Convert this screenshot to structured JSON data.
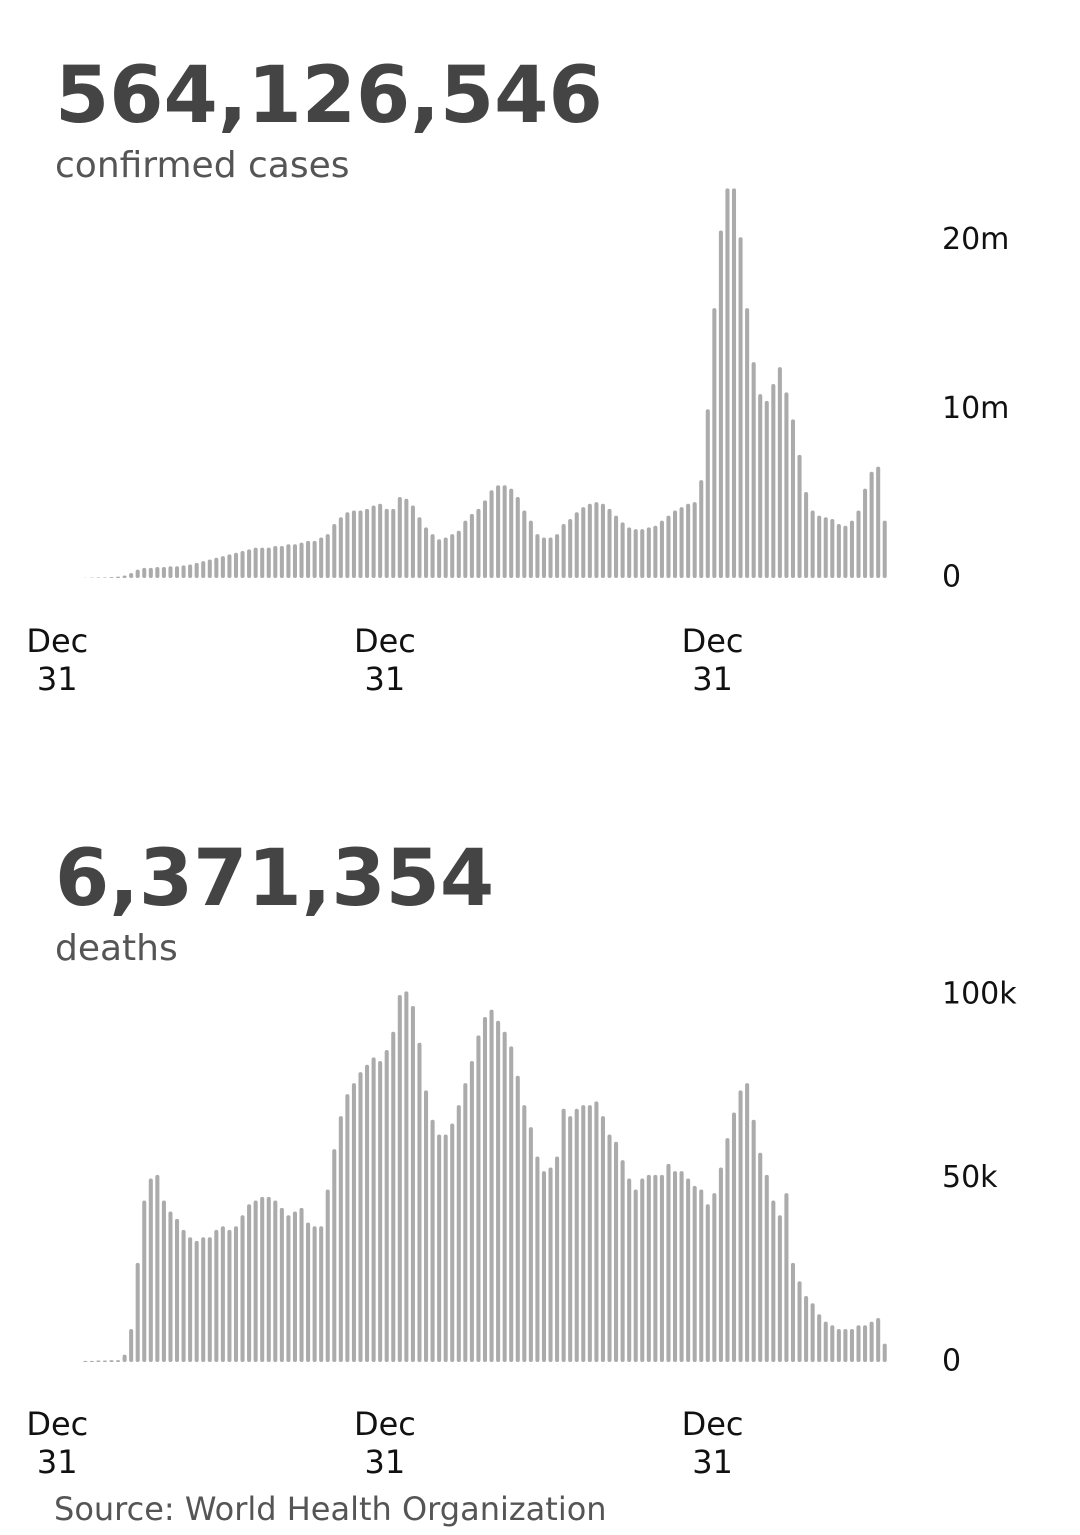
{
  "chart_data": [
    {
      "type": "bar",
      "title": "564,126,546",
      "subtitle": "confirmed cases",
      "color": "#ababab",
      "grid": false,
      "ylim": [
        0,
        23000000
      ],
      "yticks": [
        0,
        {
          "value": 10000000,
          "label": "10m"
        },
        {
          "value": 20000000,
          "label": "20m"
        }
      ],
      "categories": [
        "Dec 31",
        null,
        null,
        null,
        null,
        null,
        null,
        null,
        null,
        null,
        null,
        null,
        null,
        null,
        null,
        null,
        null,
        null,
        null,
        null,
        null,
        null,
        null,
        null,
        null,
        null,
        null,
        null,
        null,
        null,
        null,
        null,
        null,
        null,
        null,
        null,
        null,
        null,
        null,
        null,
        null,
        null,
        null,
        null,
        null,
        null,
        null,
        null,
        null,
        null,
        "Dec 31",
        null,
        null,
        null,
        null,
        null,
        null,
        null,
        null,
        null,
        null,
        null,
        null,
        null,
        null,
        null,
        null,
        null,
        null,
        null,
        null,
        null,
        null,
        null,
        null,
        null,
        null,
        null,
        null,
        null,
        null,
        null,
        null,
        null,
        null,
        null,
        null,
        null,
        null,
        null,
        null,
        null,
        null,
        null,
        null,
        null,
        null,
        null,
        null,
        null,
        "Dec 31",
        null,
        null,
        null,
        null,
        null,
        null,
        null,
        null,
        null,
        null,
        null,
        null,
        null,
        null,
        null,
        null,
        null,
        null,
        null,
        null,
        null,
        null
      ],
      "values": [
        10000,
        20000,
        30000,
        30000,
        50000,
        80000,
        150000,
        300000,
        500000,
        600000,
        600000,
        650000,
        650000,
        700000,
        700000,
        750000,
        800000,
        900000,
        1000000,
        1100000,
        1200000,
        1300000,
        1400000,
        1500000,
        1600000,
        1700000,
        1800000,
        1800000,
        1800000,
        1900000,
        1900000,
        2000000,
        2000000,
        2100000,
        2200000,
        2200000,
        2400000,
        2600000,
        3200000,
        3600000,
        3900000,
        4000000,
        4000000,
        4100000,
        4300000,
        4400000,
        4100000,
        4100000,
        4800000,
        4700000,
        4300000,
        3600000,
        3000000,
        2600000,
        2300000,
        2400000,
        2600000,
        2800000,
        3400000,
        3800000,
        4100000,
        4600000,
        5200000,
        5500000,
        5500000,
        5300000,
        4800000,
        4000000,
        3400000,
        2600000,
        2400000,
        2400000,
        2600000,
        3200000,
        3500000,
        3900000,
        4200000,
        4400000,
        4500000,
        4400000,
        4100000,
        3700000,
        3300000,
        3000000,
        2900000,
        2900000,
        3000000,
        3100000,
        3400000,
        3700000,
        4000000,
        4200000,
        4400000,
        4500000,
        5800000,
        10000000,
        16000000,
        20600000,
        23100000,
        23100000,
        20200000,
        16000000,
        12800000,
        10900000,
        10500000,
        11500000,
        12500000,
        11000000,
        9400000,
        7300000,
        5100000,
        4000000,
        3700000,
        3600000,
        3500000,
        3200000,
        3100000,
        3400000,
        4000000,
        5300000,
        6300000,
        6600000,
        3400000
      ]
    },
    {
      "type": "bar",
      "title": "6,371,354",
      "subtitle": "deaths",
      "color": "#ababab",
      "grid": false,
      "ylim": [
        0,
        100000
      ],
      "yticks": [
        0,
        {
          "value": 50000,
          "label": "50k"
        },
        {
          "value": 100000,
          "label": "100k"
        }
      ],
      "categories": [
        "Dec 31",
        null,
        null,
        null,
        null,
        null,
        null,
        null,
        null,
        null,
        null,
        null,
        null,
        null,
        null,
        null,
        null,
        null,
        null,
        null,
        null,
        null,
        null,
        null,
        null,
        null,
        null,
        null,
        null,
        null,
        null,
        null,
        null,
        null,
        null,
        null,
        null,
        null,
        null,
        null,
        null,
        null,
        null,
        null,
        null,
        null,
        null,
        null,
        null,
        null,
        "Dec 31",
        null,
        null,
        null,
        null,
        null,
        null,
        null,
        null,
        null,
        null,
        null,
        null,
        null,
        null,
        null,
        null,
        null,
        null,
        null,
        null,
        null,
        null,
        null,
        null,
        null,
        null,
        null,
        null,
        null,
        null,
        null,
        null,
        null,
        null,
        null,
        null,
        null,
        null,
        null,
        null,
        null,
        null,
        null,
        null,
        null,
        null,
        null,
        null,
        null,
        "Dec 31",
        null,
        null,
        null,
        null,
        null,
        null,
        null,
        null,
        null,
        null,
        null,
        null,
        null,
        null,
        null,
        null,
        null,
        null,
        null,
        null,
        null,
        null
      ],
      "values": [
        300,
        300,
        400,
        400,
        500,
        500,
        2000,
        9000,
        27000,
        44000,
        50000,
        51000,
        44000,
        41000,
        39000,
        36000,
        34000,
        33000,
        34000,
        34000,
        36000,
        37000,
        36000,
        37000,
        40000,
        43000,
        44000,
        45000,
        45000,
        44000,
        42000,
        40000,
        41000,
        42000,
        38000,
        37000,
        37000,
        47000,
        58000,
        67000,
        73000,
        76000,
        79000,
        81000,
        83000,
        82000,
        85000,
        90000,
        100000,
        101000,
        97000,
        87000,
        74000,
        66000,
        62000,
        62000,
        65000,
        70000,
        76000,
        82000,
        89000,
        94000,
        96000,
        93000,
        90000,
        86000,
        78000,
        70000,
        64000,
        56000,
        52000,
        53000,
        56000,
        69000,
        67000,
        69000,
        70000,
        70000,
        71000,
        67000,
        62000,
        60000,
        55000,
        50000,
        47000,
        50000,
        51000,
        51000,
        51000,
        54000,
        52000,
        52000,
        50000,
        48000,
        47000,
        43000,
        46000,
        53000,
        61000,
        68000,
        74000,
        76000,
        66000,
        57000,
        51000,
        44000,
        40000,
        46000,
        27000,
        22000,
        18000,
        16000,
        13000,
        11000,
        10000,
        9000,
        9000,
        9000,
        10000,
        10000,
        11000,
        12000,
        5000
      ]
    }
  ],
  "source": "Source:  World Health Organization"
}
